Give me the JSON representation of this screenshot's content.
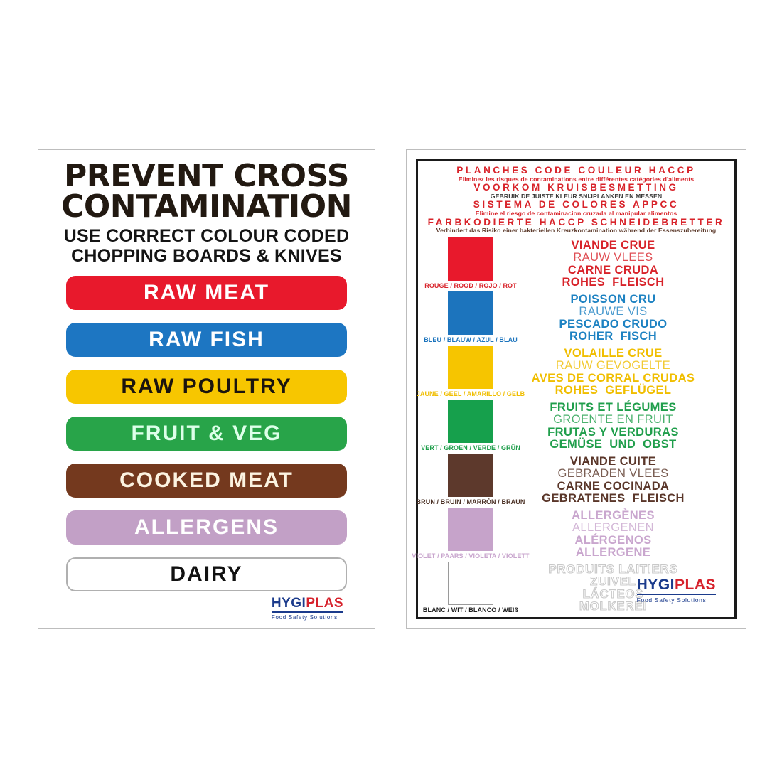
{
  "brand": {
    "part1": "HYGI",
    "part2": "PLAS",
    "tagline": "Food Safety Solutions",
    "navy": "#1b3b8c",
    "red": "#d6212b"
  },
  "left_poster": {
    "title_line1": "PREVENT CROSS",
    "title_line2": "CONTAMINATION",
    "subtitle_line1": "USE CORRECT COLOUR CODED",
    "subtitle_line2": "CHOPPING BOARDS & KNIVES",
    "bars": [
      {
        "label": "RAW MEAT",
        "bg": "#e8192c",
        "fg": "#ffffff"
      },
      {
        "label": "RAW FISH",
        "bg": "#1d76c2",
        "fg": "#ffffff"
      },
      {
        "label": "RAW POULTRY",
        "bg": "#f7c600",
        "fg": "#1b140e"
      },
      {
        "label": "FRUIT & VEG",
        "bg": "#28a449",
        "fg": "#ddffe9"
      },
      {
        "label": "COOKED MEAT",
        "bg": "#74391e",
        "fg": "#fcf3e1"
      },
      {
        "label": "ALLERGENS",
        "bg": "#c2a0c6",
        "fg": "#ffffff"
      },
      {
        "label": "DAIRY",
        "bg": "#ffffff",
        "fg": "#111111",
        "border": "#b0b0b0"
      }
    ]
  },
  "right_poster": {
    "header": [
      {
        "text": "PLANCHES CODE COULEUR HACCP",
        "style": "big",
        "color": "#d8232a"
      },
      {
        "text": "Eliminez les risques de contaminations entre différentes catégories d'aliments",
        "style": "small",
        "color": "#d8232a"
      },
      {
        "text": "VOORKOM KRUISBESMETTING",
        "style": "big",
        "color": "#d8232a"
      },
      {
        "text": "GEBRUIK DE JUISTE KLEUR SNIJPLANKEN EN MESSEN",
        "style": "small",
        "color": "#3a3a39"
      },
      {
        "text": "SISTEMA DE COLORES APPCC",
        "style": "big",
        "color": "#d8232a"
      },
      {
        "text": "Elimine el riesgo de contaminacion cruzada al manipular alimentos",
        "style": "small",
        "color": "#d8232a"
      },
      {
        "text": "FARBKODIERTE HACCP SCHNEIDEBRETTER",
        "style": "big",
        "color": "#d8232a"
      },
      {
        "text": "Verhindert das Risiko einer bakteriellen Kreuzkontamination während der Essenszubereitung",
        "style": "small",
        "color": "#5c3a2b"
      }
    ],
    "rows": [
      {
        "swatch": "#e8192c",
        "caption": "ROUGE / ROOD / ROJO / ROT",
        "caption_color": "#d8232a",
        "text_color": "#d8232a",
        "lines": [
          {
            "text": "VIANDE CRUE",
            "bold": true
          },
          {
            "text": "RAUW VLEES",
            "bold": false
          },
          {
            "text": "CARNE CRUDA",
            "bold": true
          },
          {
            "text": "ROHES FLEISCH",
            "bold": true,
            "spaced": true
          }
        ]
      },
      {
        "swatch": "#1c74bd",
        "caption": "BLEU / BLAUW / AZUL / BLAU",
        "caption_color": "#1c74bd",
        "text_color": "#1d82c2",
        "lines": [
          {
            "text": "POISSON CRU",
            "bold": true
          },
          {
            "text": "RAUWE VIS",
            "bold": false
          },
          {
            "text": "PESCADO CRUDO",
            "bold": true
          },
          {
            "text": "ROHER FISCH",
            "bold": true,
            "spaced": true
          }
        ]
      },
      {
        "swatch": "#f6c500",
        "caption": "JAUNE / GEEL / AMARILLO / GELB",
        "caption_color": "#f0be00",
        "text_color": "#f0be00",
        "lines": [
          {
            "text": "VOLAILLE CRUE",
            "bold": true
          },
          {
            "text": "RAUW GEVOGELTE",
            "bold": false
          },
          {
            "text": "AVES DE CORRAL CRUDAS",
            "bold": true
          },
          {
            "text": "ROHES GEFLÜGEL",
            "bold": true,
            "spaced": true
          }
        ]
      },
      {
        "swatch": "#16a04c",
        "caption": "VERT / GROEN / VERDE / GRÜN",
        "caption_color": "#1f9e4b",
        "text_color": "#1f9e4b",
        "lines": [
          {
            "text": "FRUITS ET LÉGUMES",
            "bold": true
          },
          {
            "text": "GROENTE EN FRUIT",
            "bold": false
          },
          {
            "text": "FRUTAS Y VERDURAS",
            "bold": true
          },
          {
            "text": "GEMÜSE UND OBST",
            "bold": true,
            "spaced": true
          }
        ]
      },
      {
        "swatch": "#5d392c",
        "caption": "BRUN / BRUIN / MARRÓN / BRAUN",
        "caption_color": "#4a3024",
        "text_color": "#5a3629",
        "lines": [
          {
            "text": "VIANDE CUITE",
            "bold": true
          },
          {
            "text": "GEBRADEN VLEES",
            "bold": false
          },
          {
            "text": "CARNE COCINADA",
            "bold": true
          },
          {
            "text": "GEBRATENES FLEISCH",
            "bold": true,
            "spaced": true
          }
        ]
      },
      {
        "swatch": "#c6a3ca",
        "caption": "VIOLET / PAARS / VIOLETA / VIOLETT",
        "caption_color": "#c9a6ce",
        "text_color": "#c9a6ce",
        "lines": [
          {
            "text": "ALLERGÈNES",
            "bold": true
          },
          {
            "text": "ALLERGENEN",
            "bold": false
          },
          {
            "text": "ALÉRGENOS",
            "bold": true
          },
          {
            "text": "ALLERGENE",
            "bold": true
          }
        ]
      },
      {
        "swatch": "#ffffff",
        "swatch_border": "#9a9a9a",
        "caption": "BLANC / WIT / BLANCO / WEIß",
        "caption_color": "#1d1d1d",
        "text_color": "#ffffff",
        "outline": true,
        "lines": [
          {
            "text": "PRODUITS LAITIERS",
            "bold": true
          },
          {
            "text": "ZUIVEL",
            "bold": true
          },
          {
            "text": "LÁCTEOS",
            "bold": true
          },
          {
            "text": "MOLKEREI",
            "bold": true
          }
        ]
      }
    ]
  }
}
